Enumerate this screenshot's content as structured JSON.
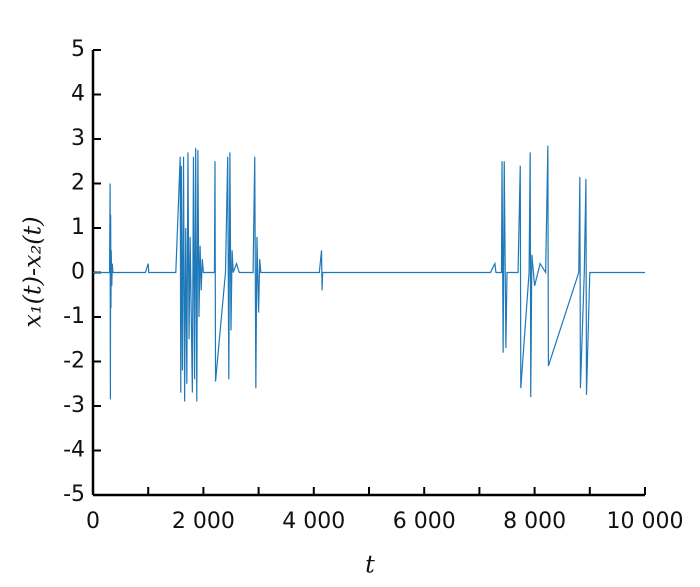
{
  "chart_data": {
    "type": "line",
    "xlabel": "t",
    "ylabel": "x₁(t)-x₂(t)",
    "xlim": [
      0,
      10000
    ],
    "ylim": [
      -5,
      5
    ],
    "xticks": [
      0,
      {
        "value": 2000,
        "label": "2 000"
      },
      {
        "value": 4000,
        "label": "4 000"
      },
      {
        "value": 6000,
        "label": "6 000"
      },
      {
        "value": 8000,
        "label": "8 000"
      },
      {
        "value": 10000,
        "label": "10 000"
      }
    ],
    "xminorticks": [
      1000,
      3000,
      5000,
      7000,
      9000
    ],
    "yticks": [
      -5,
      -4,
      -3,
      -2,
      -1,
      0,
      1,
      2,
      3,
      4,
      5
    ],
    "grid": false,
    "series": [
      {
        "color": "#1f78b8",
        "x": [
          0,
          300,
          310,
          315,
          320,
          325,
          330,
          340,
          350,
          360,
          380,
          950,
          1000,
          1010,
          1050,
          1500,
          1580,
          1590,
          1600,
          1620,
          1640,
          1660,
          1680,
          1700,
          1720,
          1740,
          1760,
          1800,
          1820,
          1840,
          1860,
          1880,
          1900,
          1920,
          1940,
          1960,
          1980,
          2000,
          2030,
          2200,
          2210,
          2220,
          2400,
          2440,
          2460,
          2480,
          2500,
          2520,
          2540,
          2600,
          2650,
          2900,
          2930,
          2950,
          2970,
          3000,
          3020,
          3040,
          4100,
          4140,
          4150,
          4160,
          7200,
          7280,
          7300,
          7400,
          7410,
          7430,
          7450,
          7480,
          7500,
          7700,
          7740,
          7750,
          7900,
          7920,
          7930,
          7950,
          8000,
          8100,
          8200,
          8240,
          8250,
          8800,
          8820,
          8830,
          8900,
          8930,
          8940,
          9000,
          9200,
          10000
        ],
        "values": [
          0,
          0,
          2.0,
          -2.85,
          1.3,
          -0.8,
          0.5,
          -0.3,
          0.2,
          0,
          0,
          0,
          0.2,
          0,
          0,
          0,
          2.6,
          -2.7,
          2.4,
          -2.2,
          2.6,
          -2.9,
          1.0,
          -2.5,
          2.7,
          -1.5,
          0.8,
          -2.7,
          2.6,
          -2.4,
          2.8,
          -2.9,
          2.75,
          -1.0,
          0.6,
          -0.4,
          0.3,
          0,
          0,
          0,
          2.5,
          -2.45,
          0,
          2.6,
          -2.4,
          2.7,
          -1.3,
          0.5,
          0,
          0.2,
          0,
          0,
          2.6,
          -2.6,
          0.8,
          -0.9,
          0.3,
          0,
          0,
          0.5,
          -0.4,
          0,
          0,
          0.2,
          0,
          0,
          2.5,
          -1.8,
          2.5,
          -1.7,
          0,
          0,
          2.4,
          -2.6,
          0,
          2.7,
          -2.8,
          0.4,
          -0.3,
          0.2,
          0,
          2.85,
          -2.1,
          0,
          2.15,
          -2.6,
          0,
          2.1,
          -2.75,
          0,
          0,
          0
        ]
      }
    ]
  }
}
